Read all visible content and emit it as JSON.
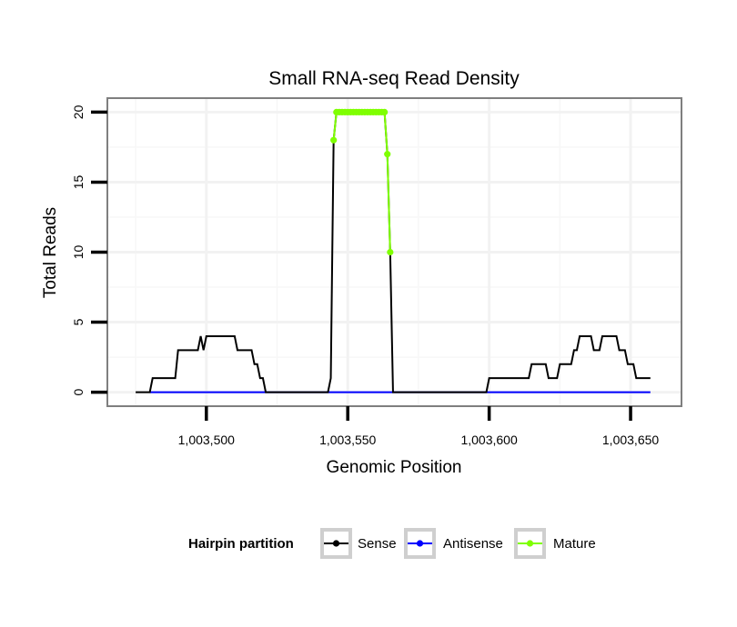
{
  "chart_data": {
    "type": "line",
    "title": "Small RNA-seq Read Density",
    "xlabel": "Genomic Position",
    "ylabel": "Total Reads",
    "xlim": [
      1003465,
      1003668
    ],
    "ylim": [
      -1,
      21
    ],
    "x_ticks": [
      1003500,
      1003550,
      1003600,
      1003650
    ],
    "x_tick_labels": [
      "1,003,500",
      "1,003,550",
      "1,003,600",
      "1,003,650"
    ],
    "y_ticks": [
      0,
      5,
      10,
      15,
      20
    ],
    "y_tick_labels": [
      "0",
      "5",
      "10",
      "15",
      "20"
    ],
    "grid": true,
    "legend": {
      "title": "Hairpin partition",
      "position": "bottom",
      "entries": [
        "Sense",
        "Antisense",
        "Mature"
      ]
    },
    "series": [
      {
        "name": "Sense",
        "color": "#000000",
        "points": [
          [
            1003475,
            0
          ],
          [
            1003480,
            0
          ],
          [
            1003481,
            1
          ],
          [
            1003489,
            1
          ],
          [
            1003490,
            3
          ],
          [
            1003497,
            3
          ],
          [
            1003498,
            4
          ],
          [
            1003499,
            3
          ],
          [
            1003500,
            4
          ],
          [
            1003501,
            4
          ],
          [
            1003510,
            4
          ],
          [
            1003511,
            3
          ],
          [
            1003516,
            3
          ],
          [
            1003517,
            2
          ],
          [
            1003518,
            2
          ],
          [
            1003519,
            1
          ],
          [
            1003520,
            1
          ],
          [
            1003521,
            0
          ],
          [
            1003543,
            0
          ],
          [
            1003544,
            1
          ],
          [
            1003545,
            18
          ],
          [
            1003546,
            20
          ],
          [
            1003563,
            20
          ],
          [
            1003564,
            17
          ],
          [
            1003565,
            10
          ],
          [
            1003566,
            0
          ],
          [
            1003599,
            0
          ],
          [
            1003600,
            1
          ],
          [
            1003614,
            1
          ],
          [
            1003615,
            2
          ],
          [
            1003620,
            2
          ],
          [
            1003621,
            1
          ],
          [
            1003624,
            1
          ],
          [
            1003625,
            2
          ],
          [
            1003629,
            2
          ],
          [
            1003630,
            3
          ],
          [
            1003631,
            3
          ],
          [
            1003632,
            4
          ],
          [
            1003636,
            4
          ],
          [
            1003637,
            3
          ],
          [
            1003639,
            3
          ],
          [
            1003640,
            4
          ],
          [
            1003645,
            4
          ],
          [
            1003646,
            3
          ],
          [
            1003648,
            3
          ],
          [
            1003649,
            2
          ],
          [
            1003651,
            2
          ],
          [
            1003652,
            1
          ],
          [
            1003657,
            1
          ]
        ]
      },
      {
        "name": "Antisense",
        "color": "#0000ff",
        "points": [
          [
            1003480,
            0
          ],
          [
            1003657,
            0
          ]
        ]
      },
      {
        "name": "Mature",
        "color": "#7fff00",
        "points": [
          [
            1003545,
            18
          ],
          [
            1003546,
            20
          ],
          [
            1003547,
            20
          ],
          [
            1003548,
            20
          ],
          [
            1003549,
            20
          ],
          [
            1003550,
            20
          ],
          [
            1003551,
            20
          ],
          [
            1003552,
            20
          ],
          [
            1003553,
            20
          ],
          [
            1003554,
            20
          ],
          [
            1003555,
            20
          ],
          [
            1003556,
            20
          ],
          [
            1003557,
            20
          ],
          [
            1003558,
            20
          ],
          [
            1003559,
            20
          ],
          [
            1003560,
            20
          ],
          [
            1003561,
            20
          ],
          [
            1003562,
            20
          ],
          [
            1003563,
            20
          ],
          [
            1003564,
            17
          ],
          [
            1003565,
            10
          ]
        ]
      }
    ]
  }
}
